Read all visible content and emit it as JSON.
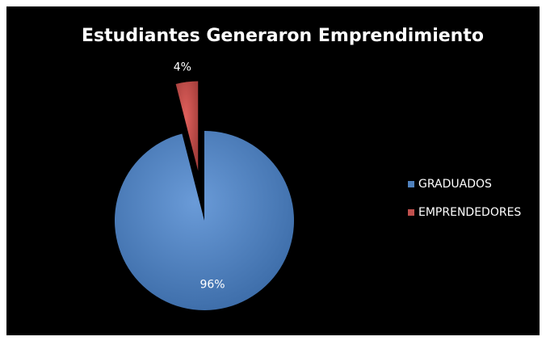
{
  "chart_data": {
    "type": "pie",
    "title": "Estudiantes Generaron Emprendimiento",
    "categories": [
      "GRADUADOS",
      "EMPRENDEDORES"
    ],
    "values": [
      96,
      4
    ],
    "value_labels": [
      "96%",
      "4%"
    ],
    "colors": [
      "#4f81bd",
      "#c0504d"
    ],
    "legend": "right"
  }
}
